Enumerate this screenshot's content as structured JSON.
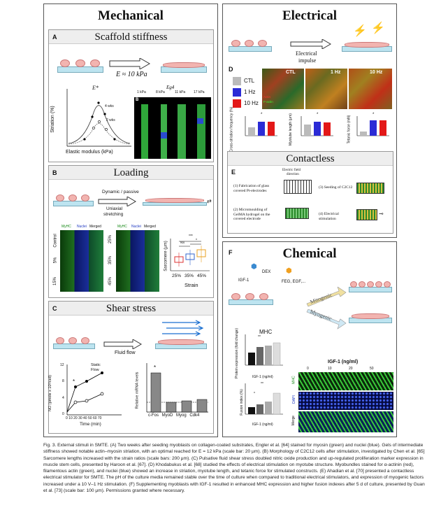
{
  "mechanical": {
    "title": "Mechanical",
    "a": {
      "letter": "A",
      "title": "Scaffold stiffness",
      "e_label": "E ≈ 10 kPa",
      "e_star": "E*",
      "e_g4": "Eg4",
      "ylabel": "Striation (%)",
      "xlabel": "Elastic modulus (kPa)",
      "wks4": "4 wks",
      "wks2": "2 wks",
      "panel_b": "B",
      "stiffness_cols": [
        "1 kPa",
        "8 kPa",
        "11 kPa",
        "17 kPa"
      ]
    },
    "b": {
      "letter": "B",
      "title": "Loading",
      "stretch1": "Dynamic / passive",
      "stretch2": "Uniaxial",
      "stretch3": "stretching",
      "channels": [
        "MyHC",
        "Nuclei",
        "Merged"
      ],
      "rows_left": [
        "Control",
        "5%",
        "15%"
      ],
      "rows_right": [
        "25%",
        "35%",
        "45%"
      ],
      "ylabel": "Sarcomere (μm)",
      "xlabel": "Strain",
      "cats": [
        "25%",
        "35%",
        "45%"
      ],
      "sig1": "***",
      "sig2": "NS",
      "sig3": "*"
    },
    "c": {
      "letter": "C",
      "title": "Shear stress",
      "flow": "Fluid flow",
      "ylabel": "NO (pmole x 10³/cell)",
      "xlabel": "Time (min)",
      "legend_static": "Static",
      "legend_flow": "Flow",
      "yticks": [
        "12",
        "8",
        "4",
        "0"
      ],
      "xticks": [
        "0",
        "10",
        "20",
        "30",
        "40",
        "50",
        "60",
        "70"
      ],
      "bar_ylabel": "Relative mRNA levels",
      "bar_yticks": [
        "5",
        "4",
        "3",
        "2",
        "1",
        "0"
      ],
      "sig": "*"
    }
  },
  "electrical": {
    "title": "Electrical",
    "impulse1": "Electrical",
    "impulse2": "impulse",
    "d": {
      "letter": "D",
      "legend": [
        "CTL",
        "1 Hz",
        "10 Hz"
      ],
      "img_labels": [
        "CTL",
        "1 Hz",
        "10 Hz"
      ],
      "stain1": "Actin",
      "stain2": "F-actin",
      "ylabels": [
        "Cross-striation frequency (%)",
        "Myotube length (μm)",
        "Tetanic force (mN)"
      ],
      "sig": "*"
    }
  },
  "contactless": {
    "title": "Contactless",
    "letter": "E",
    "field1": "Electric field",
    "field2": "direction",
    "steps": [
      "(1) Fabrication of glass covered Pt-electrodes",
      "(2) Micromoulding of GelMA hydrogel on the covered electrode",
      "(3) Seeding of C2C12",
      "(4) Electrical stimulation"
    ]
  },
  "chemical": {
    "title": "Chemical",
    "letter": "F",
    "igf": "IGF-1",
    "dex": "DEX",
    "fgf": "FEG, EGF,...",
    "mitogenic": "Mitogenic",
    "myogenic": "Myogenic",
    "mhc_title": "MHC",
    "mhc_ylabel": "Protein expression (fold change)",
    "fusion_ylabel": "Fusion index (%)",
    "xlabel": "IGF-1 (ng/ml)",
    "x_ticks": [
      "0",
      "10",
      "20",
      "50"
    ],
    "grid_header": "IGF-1 (ng/ml)",
    "grid_cols": [
      "0",
      "10",
      "20",
      "50"
    ],
    "grid_rows": [
      "MHC",
      "DAPI",
      "Merge"
    ],
    "sig1": "**",
    "sig2": "**",
    "sig3": "*"
  },
  "caption": "Fig. 3. External stimuli in SMTE. (A) Two weeks after seeding myoblasts on collagen-coated substrates, Engler et al. [64] stained for myosin (green) and nuclei (blue). Gels of intermediate stiffness showed notable actin–myosin striation, with an optimal reached for E = 12 kPa (scale bar: 20 μm). (B) Morphology of C2C12 cells after stimulation, investigated by Chen et al. [65] Sarcomere lengths increased with the strain ratios (scale bars: 200 μm). (C) Pulsative fluid shear stress doubled nitric oxide production and up-regulated proliferation marker expression in muscle stem cells, presented by Haroon et al. [67]. (D) Khodabukus et al. [68] studied the effects of electrical stimulation on myotube structure. Myobundles stained for α-actinin (red), filamentous actin (green), and nuclei (blue) showed an increase in striation, myotube length, and tetanic force for stimulated constructs. (E) Ahadian et al. [70] presented a contactless electrical stimulator for SMTE. The pH of the culture media remained stable over the time of culture when compared to traditional electrical stimulators, and expression of myogenic factors increased under a 10 V–1 Hz stimulation. (F) Supplementing myoblasts with IGF-1 resulted in enhanced MHC expression and higher fusion indexes after 5 d of culture, presented by Guan et al. [73] (scale bar: 100 μm). Permissions granted where necessary."
}
